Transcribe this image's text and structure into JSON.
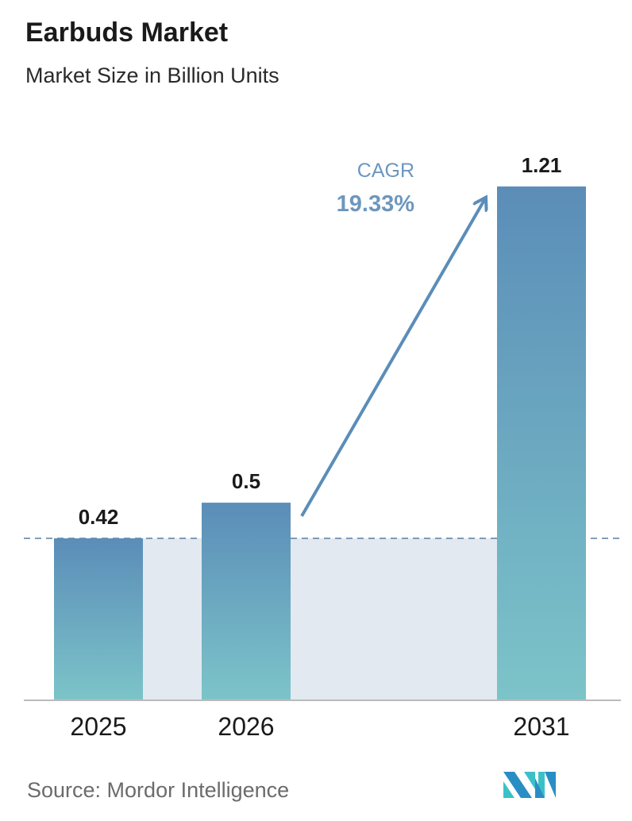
{
  "title": "Earbuds Market",
  "subtitle": "Market Size in Billion Units",
  "source": "Source:  Mordor Intelligence",
  "chart_data": {
    "type": "bar",
    "title": "Earbuds Market",
    "subtitle": "Market Size in Billion Units",
    "categories": [
      "2025",
      "2026",
      "2031"
    ],
    "values": [
      0.42,
      0.5,
      1.21
    ],
    "data_labels": [
      "0.42",
      "0.5",
      "1.21"
    ],
    "annotation": {
      "label": "CAGR",
      "value": "19.33%"
    },
    "grid": false,
    "bar_gradient": [
      "#5b8db8",
      "#7cc4c9"
    ],
    "annotation_color": "#5b8db8",
    "shade_color": "#e2e9f0"
  }
}
